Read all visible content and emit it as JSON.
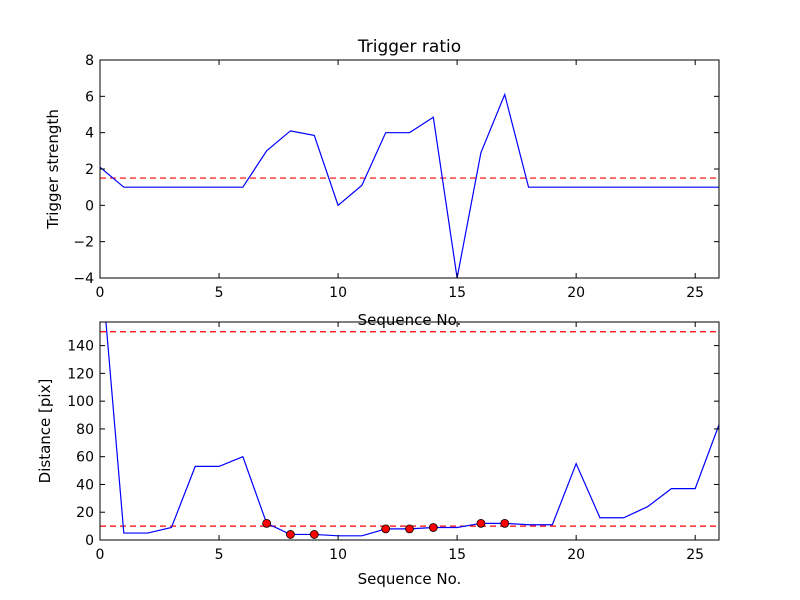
{
  "chart_data": [
    {
      "type": "line",
      "title": "Trigger ratio",
      "xlabel": "Sequence No.",
      "ylabel": "Trigger strength",
      "xlim": [
        0,
        26
      ],
      "ylim": [
        -4,
        8
      ],
      "xticks": [
        "0",
        "5",
        "10",
        "15",
        "20",
        "25"
      ],
      "yticks": [
        "−4",
        "−2",
        "0",
        "2",
        "4",
        "6",
        "8"
      ],
      "grid": false,
      "line_color": "#0000ff",
      "threshold_color": "#ff0000",
      "series": [
        {
          "x": [
            0,
            1,
            2,
            3,
            4,
            5,
            6,
            7,
            8,
            9,
            10,
            11,
            12,
            13,
            14,
            15,
            16,
            17,
            18,
            19,
            20,
            21,
            22,
            23,
            24,
            25,
            26
          ],
          "values": [
            2.1,
            1.0,
            1.0,
            1.0,
            1.0,
            1.0,
            1.0,
            3.0,
            4.1,
            3.85,
            0.0,
            1.1,
            4.0,
            4.0,
            4.85,
            -4.0,
            2.9,
            6.1,
            1.0,
            1.0,
            1.0,
            1.0,
            1.0,
            1.0,
            1.0,
            1.0,
            1.0
          ]
        }
      ],
      "thresholds": [
        1.5
      ]
    },
    {
      "type": "line",
      "title": "",
      "xlabel": "Sequence No.",
      "ylabel": "Distance [pix]",
      "xlim": [
        0,
        26
      ],
      "ylim": [
        0,
        157
      ],
      "xticks": [
        "0",
        "5",
        "10",
        "15",
        "20",
        "25"
      ],
      "yticks": [
        "0",
        "20",
        "40",
        "60",
        "80",
        "100",
        "120",
        "140"
      ],
      "grid": false,
      "line_color": "#0000ff",
      "marker_color": "#ff0000",
      "threshold_color": "#ff0000",
      "series": [
        {
          "x": [
            0.25,
            1,
            2,
            3,
            4,
            5,
            6,
            7,
            8,
            9,
            10,
            11,
            12,
            13,
            14,
            15,
            16,
            17,
            18,
            19,
            20,
            21,
            22,
            23,
            24,
            25,
            26
          ],
          "values": [
            157,
            5,
            5,
            9,
            53,
            53,
            60,
            12,
            4,
            4,
            3,
            3,
            8,
            8,
            9,
            9,
            12,
            12,
            11,
            11,
            55,
            16,
            16,
            24,
            37,
            37,
            83
          ]
        }
      ],
      "markers": {
        "x": [
          7,
          8,
          9,
          12,
          13,
          14,
          16,
          17
        ],
        "values": [
          12,
          4,
          4,
          8,
          8,
          9,
          12,
          12
        ]
      },
      "thresholds": [
        10,
        150
      ]
    }
  ]
}
